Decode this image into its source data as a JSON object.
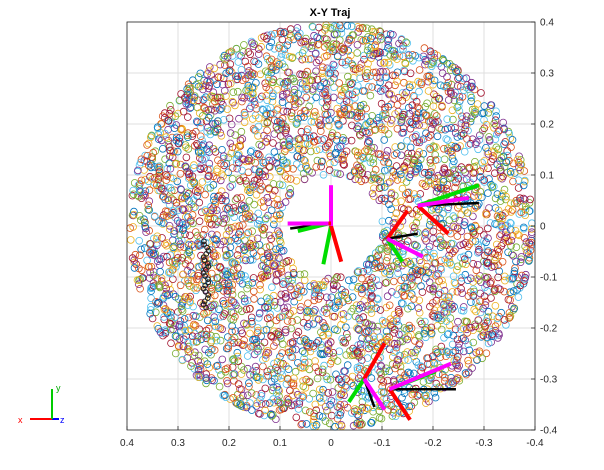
{
  "chart_data": {
    "type": "scatter",
    "title": "X-Y Traj",
    "xlabel": "",
    "ylabel": "",
    "xlim": [
      0.4,
      -0.4
    ],
    "ylim": [
      -0.4,
      0.4
    ],
    "x_reversed": true,
    "y_axis_side": "right",
    "grid": true,
    "marker": "open-circle",
    "x_ticks": [
      "0.4",
      "0.3",
      "0.2",
      "0.1",
      "0",
      "-0.1",
      "-0.2",
      "-0.3",
      "-0.4"
    ],
    "y_ticks": [
      "0.4",
      "0.3",
      "0.2",
      "0.1",
      "0",
      "-0.1",
      "-0.2",
      "-0.3",
      "-0.4"
    ],
    "scatter_region": {
      "shape": "annulus",
      "center": [
        0,
        0
      ],
      "inner_radius": 0.1,
      "outer_radius": 0.4,
      "point_count_approx": 4000
    },
    "series_colors": [
      "#0072BD",
      "#D95319",
      "#EDB120",
      "#7E2F8E",
      "#77AC30",
      "#4DBEEE",
      "#A2142F"
    ],
    "frames": [
      {
        "origin": [
          0,
          0
        ],
        "red": [
          -0.02,
          -0.07
        ],
        "green": [
          0.015,
          -0.075
        ],
        "magenta": [
          0.0,
          0.08
        ],
        "black": [
          0.0,
          0.03
        ]
      },
      {
        "origin": [
          0.005,
          0.005
        ],
        "red": [
          -0.005,
          0.0
        ],
        "green": [
          0.06,
          -0.015
        ],
        "magenta": [
          0.08,
          0.0
        ],
        "black": [
          0.075,
          -0.01
        ]
      },
      {
        "origin": [
          -0.11,
          -0.025
        ],
        "red": [
          -0.04,
          0.055
        ],
        "green": [
          -0.03,
          -0.045
        ],
        "magenta": [
          -0.07,
          -0.035
        ],
        "black": [
          -0.06,
          0.01
        ]
      },
      {
        "origin": [
          -0.17,
          0.04
        ],
        "red": [
          -0.06,
          -0.055
        ],
        "green": [
          -0.12,
          0.04
        ],
        "magenta": [
          -0.1,
          0.015
        ],
        "black": [
          -0.12,
          0.005
        ]
      },
      {
        "origin": [
          -0.065,
          -0.3
        ],
        "red": [
          -0.04,
          0.07
        ],
        "green": [
          0.03,
          -0.045
        ],
        "magenta": [
          -0.04,
          -0.06
        ],
        "black": [
          -0.02,
          -0.055
        ]
      },
      {
        "origin": [
          -0.115,
          -0.32
        ],
        "red": [
          -0.04,
          -0.06
        ],
        "green": [
          -0.09,
          0.035
        ],
        "magenta": [
          -0.12,
          0.05
        ],
        "black": [
          -0.13,
          0.0
        ]
      }
    ],
    "trace_small": {
      "x_range": [
        0.24,
        0.25
      ],
      "y_range": [
        -0.16,
        -0.03
      ]
    },
    "axis_triad": {
      "labels": [
        "x",
        "y",
        "z"
      ]
    }
  }
}
